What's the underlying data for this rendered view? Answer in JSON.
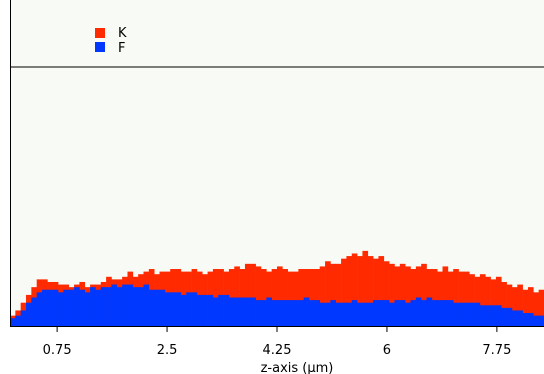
{
  "chart_data": {
    "type": "histogram",
    "title": "",
    "xlabel": "z-axis (μm)",
    "ylabel": "",
    "xlim": [
      0.0,
      8.5
    ],
    "ylim": [
      0,
      100
    ],
    "xticks": [
      0.75,
      2.5,
      4.25,
      6,
      7.75
    ],
    "xtick_labels": [
      "0.75",
      "2.5",
      "4.25",
      "6",
      "7.75"
    ],
    "grid": false,
    "legend": {
      "placement": "top-left",
      "entries": [
        "K",
        "F"
      ]
    },
    "series": [
      {
        "name": "K",
        "color": "#ff2a00",
        "bin_start": 0.0,
        "bin_width": 0.085,
        "values": [
          4,
          6,
          9,
          12,
          15,
          18,
          18,
          17,
          17,
          16,
          16,
          15,
          16,
          17,
          15,
          16,
          16,
          17,
          19,
          18,
          18,
          19,
          21,
          19,
          20,
          21,
          22,
          20,
          21,
          21,
          22,
          22,
          21,
          21,
          22,
          21,
          20,
          21,
          22,
          22,
          21,
          22,
          23,
          22,
          24,
          24,
          23,
          22,
          21,
          22,
          23,
          22,
          21,
          21,
          22,
          22,
          22,
          22,
          23,
          25,
          24,
          24,
          26,
          27,
          28,
          27,
          29,
          27,
          26,
          27,
          25,
          24,
          23,
          24,
          23,
          22,
          23,
          24,
          22,
          22,
          21,
          23,
          21,
          22,
          21,
          21,
          20,
          19,
          20,
          19,
          18,
          19,
          17,
          16,
          15,
          16,
          14,
          15,
          13,
          14
        ]
      },
      {
        "name": "F",
        "color": "#0038ff",
        "bin_start": 0.0,
        "bin_width": 0.085,
        "values": [
          3,
          4,
          6,
          9,
          11,
          13,
          14,
          14,
          14,
          13,
          14,
          14,
          15,
          14,
          13,
          15,
          14,
          15,
          15,
          16,
          15,
          16,
          16,
          15,
          15,
          16,
          14,
          14,
          14,
          13,
          13,
          13,
          12,
          13,
          13,
          12,
          12,
          12,
          11,
          12,
          12,
          11,
          11,
          11,
          11,
          11,
          10,
          10,
          11,
          10,
          10,
          10,
          10,
          10,
          10,
          11,
          10,
          10,
          9,
          9,
          10,
          9,
          9,
          9,
          10,
          9,
          9,
          9,
          10,
          10,
          10,
          9,
          10,
          10,
          9,
          10,
          11,
          10,
          11,
          10,
          10,
          10,
          10,
          9,
          9,
          9,
          9,
          9,
          8,
          8,
          8,
          8,
          7,
          7,
          6,
          6,
          5,
          5,
          4,
          4
        ]
      }
    ]
  }
}
